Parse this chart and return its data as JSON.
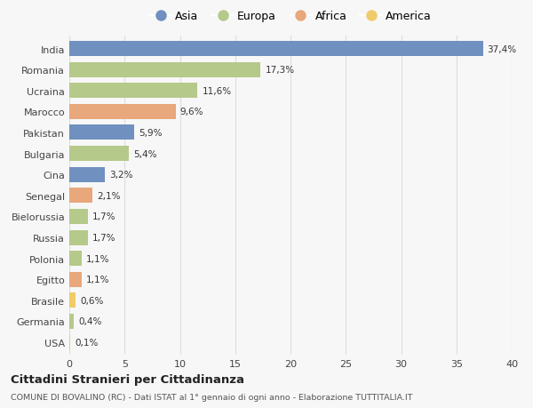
{
  "countries": [
    "India",
    "Romania",
    "Ucraina",
    "Marocco",
    "Pakistan",
    "Bulgaria",
    "Cina",
    "Senegal",
    "Bielorussia",
    "Russia",
    "Polonia",
    "Egitto",
    "Brasile",
    "Germania",
    "USA"
  ],
  "values": [
    37.4,
    17.3,
    11.6,
    9.6,
    5.9,
    5.4,
    3.2,
    2.1,
    1.7,
    1.7,
    1.1,
    1.1,
    0.6,
    0.4,
    0.1
  ],
  "labels": [
    "37,4%",
    "17,3%",
    "11,6%",
    "9,6%",
    "5,9%",
    "5,4%",
    "3,2%",
    "2,1%",
    "1,7%",
    "1,7%",
    "1,1%",
    "1,1%",
    "0,6%",
    "0,4%",
    "0,1%"
  ],
  "continents": [
    "Asia",
    "Europa",
    "Europa",
    "Africa",
    "Asia",
    "Europa",
    "Asia",
    "Africa",
    "Europa",
    "Europa",
    "Europa",
    "Africa",
    "America",
    "Europa",
    "America"
  ],
  "colors": {
    "Asia": "#7090bf",
    "Europa": "#b5c98a",
    "Africa": "#e8a87c",
    "America": "#f0cb6a"
  },
  "legend_order": [
    "Asia",
    "Europa",
    "Africa",
    "America"
  ],
  "title": "Cittadini Stranieri per Cittadinanza",
  "subtitle": "COMUNE DI BOVALINO (RC) - Dati ISTAT al 1° gennaio di ogni anno - Elaborazione TUTTITALIA.IT",
  "xlim": [
    0,
    40
  ],
  "xticks": [
    0,
    5,
    10,
    15,
    20,
    25,
    30,
    35,
    40
  ],
  "bg_color": "#f7f7f7",
  "grid_color": "#dddddd"
}
